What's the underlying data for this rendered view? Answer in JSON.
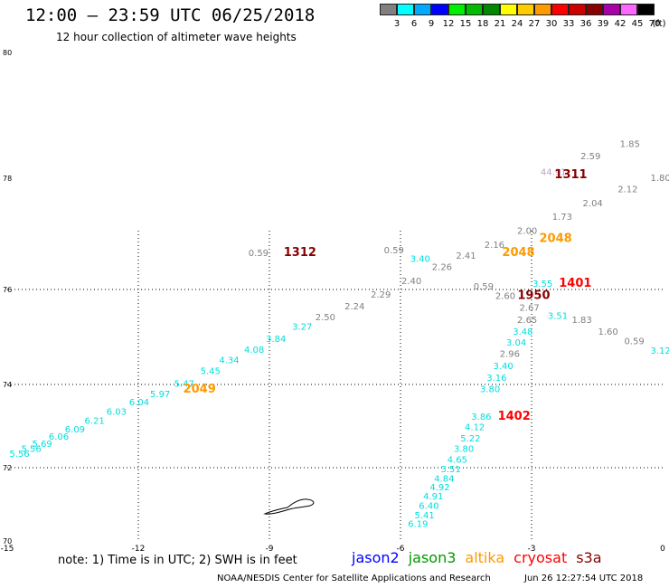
{
  "header": {
    "title": "12:00 – 23:59 UTC 06/25/2018",
    "subtitle": "12 hour collection of altimeter wave heights"
  },
  "colorbar": {
    "unit": "(ft)",
    "bins": [
      {
        "label": "3",
        "color": "#808080"
      },
      {
        "label": "6",
        "color": "#00ffff"
      },
      {
        "label": "9",
        "color": "#00aaff"
      },
      {
        "label": "12",
        "color": "#0000ff"
      },
      {
        "label": "15",
        "color": "#00ee00"
      },
      {
        "label": "18",
        "color": "#00bb00"
      },
      {
        "label": "21",
        "color": "#008800"
      },
      {
        "label": "24",
        "color": "#ffff00"
      },
      {
        "label": "27",
        "color": "#ffcc00"
      },
      {
        "label": "30",
        "color": "#ff9900"
      },
      {
        "label": "33",
        "color": "#ff0000"
      },
      {
        "label": "36",
        "color": "#cc0000"
      },
      {
        "label": "39",
        "color": "#880000"
      },
      {
        "label": "42",
        "color": "#aa00aa"
      },
      {
        "label": "45",
        "color": "#ff66ff"
      },
      {
        "label": "70",
        "color": "#000000"
      }
    ]
  },
  "axes": {
    "lat_labels": [
      {
        "lat": 80,
        "label": "80"
      },
      {
        "lat": 78,
        "label": "78"
      },
      {
        "lat": 76,
        "label": "76"
      },
      {
        "lat": 74,
        "label": "74"
      },
      {
        "lat": 72,
        "label": "72"
      },
      {
        "lat": 70,
        "label": "70"
      }
    ],
    "lon_labels": [
      {
        "lon": -15,
        "label": "-15"
      },
      {
        "lon": -12,
        "label": "-12"
      },
      {
        "lon": -9,
        "label": "-9"
      },
      {
        "lon": -6,
        "label": "-6"
      },
      {
        "lon": -3,
        "label": "-3"
      },
      {
        "lon": 0,
        "label": "0"
      }
    ],
    "lon_range": [
      -15,
      0
    ],
    "lat_range": [
      70,
      80
    ]
  },
  "colors": {
    "jason2": "#0000ff",
    "jason3": "#009900",
    "altika": "#ff9900",
    "cryosat": "#ff0000",
    "s3a": "#880000",
    "low_gray": "#808080",
    "cyan": "#00dddd"
  },
  "wave_labels": [
    {
      "text": "5.56",
      "lon": -14.72,
      "lat": 72.26,
      "c": "cyan"
    },
    {
      "text": "5.56",
      "lon": -14.45,
      "lat": 72.38,
      "c": "cyan"
    },
    {
      "text": "5.69",
      "lon": -14.2,
      "lat": 72.5,
      "c": "cyan"
    },
    {
      "text": "6.06",
      "lon": -13.82,
      "lat": 72.67,
      "c": "cyan"
    },
    {
      "text": "6.09",
      "lon": -13.45,
      "lat": 72.85,
      "c": "cyan"
    },
    {
      "text": "6.21",
      "lon": -13.0,
      "lat": 73.05,
      "c": "cyan"
    },
    {
      "text": "6.03",
      "lon": -12.5,
      "lat": 73.27,
      "c": "cyan"
    },
    {
      "text": "6.04",
      "lon": -11.98,
      "lat": 73.5,
      "c": "cyan"
    },
    {
      "text": "5.97",
      "lon": -11.5,
      "lat": 73.7,
      "c": "cyan"
    },
    {
      "text": "5.47",
      "lon": -10.95,
      "lat": 73.95,
      "c": "cyan"
    },
    {
      "text": "5.45",
      "lon": -10.35,
      "lat": 74.22,
      "c": "cyan"
    },
    {
      "text": "4.34",
      "lon": -9.92,
      "lat": 74.45,
      "c": "cyan"
    },
    {
      "text": "4.08",
      "lon": -9.35,
      "lat": 74.67,
      "c": "cyan"
    },
    {
      "text": "3.84",
      "lon": -8.85,
      "lat": 74.9,
      "c": "cyan"
    },
    {
      "text": "3.27",
      "lon": -8.25,
      "lat": 75.15,
      "c": "cyan"
    },
    {
      "text": "2.50",
      "lon": -7.72,
      "lat": 75.35,
      "c": "low_gray"
    },
    {
      "text": "2.24",
      "lon": -7.05,
      "lat": 75.58,
      "c": "low_gray"
    },
    {
      "text": "2.29",
      "lon": -6.45,
      "lat": 75.83,
      "c": "low_gray"
    },
    {
      "text": "2.40",
      "lon": -5.75,
      "lat": 76.1,
      "c": "low_gray"
    },
    {
      "text": "2.26",
      "lon": -5.05,
      "lat": 76.35,
      "c": "low_gray"
    },
    {
      "text": "2.41",
      "lon": -4.5,
      "lat": 76.55,
      "c": "low_gray"
    },
    {
      "text": "2.16",
      "lon": -3.85,
      "lat": 76.75,
      "c": "low_gray"
    },
    {
      "text": "2.00",
      "lon": -3.1,
      "lat": 77.0,
      "c": "low_gray"
    },
    {
      "text": "1.73",
      "lon": -2.3,
      "lat": 77.25,
      "c": "low_gray"
    },
    {
      "text": "2.04",
      "lon": -1.6,
      "lat": 77.5,
      "c": "low_gray"
    },
    {
      "text": "2.12",
      "lon": -0.8,
      "lat": 77.75,
      "c": "low_gray"
    },
    {
      "text": "1.80",
      "lon": -0.05,
      "lat": 77.95,
      "c": "low_gray"
    },
    {
      "text": "1.85",
      "lon": -0.75,
      "lat": 78.5,
      "c": "low_gray"
    },
    {
      "text": "2.59",
      "lon": -1.65,
      "lat": 78.3,
      "c": "low_gray"
    },
    {
      "text": "44.91",
      "lon": -2.5,
      "lat": 78.05,
      "c": "#b8a3cc"
    },
    {
      "text": "0.59",
      "lon": -9.25,
      "lat": 76.6,
      "c": "low_gray"
    },
    {
      "text": "0.59",
      "lon": -6.15,
      "lat": 76.65,
      "c": "low_gray"
    },
    {
      "text": "3.40",
      "lon": -5.55,
      "lat": 76.5,
      "c": "cyan"
    },
    {
      "text": "0.59",
      "lon": -4.1,
      "lat": 76.0,
      "c": "low_gray"
    },
    {
      "text": "2.60",
      "lon": -3.6,
      "lat": 75.8,
      "c": "low_gray"
    },
    {
      "text": "3.55",
      "lon": -2.75,
      "lat": 76.05,
      "c": "cyan"
    },
    {
      "text": "2.67",
      "lon": -3.05,
      "lat": 75.55,
      "c": "low_gray"
    },
    {
      "text": "2.65",
      "lon": -3.1,
      "lat": 75.3,
      "c": "low_gray"
    },
    {
      "text": "3.51",
      "lon": -2.4,
      "lat": 75.38,
      "c": "cyan"
    },
    {
      "text": "3.48",
      "lon": -3.2,
      "lat": 75.05,
      "c": "cyan"
    },
    {
      "text": "3.04",
      "lon": -3.35,
      "lat": 74.82,
      "c": "cyan"
    },
    {
      "text": "2.96",
      "lon": -3.5,
      "lat": 74.58,
      "c": "low_gray"
    },
    {
      "text": "3.40",
      "lon": -3.65,
      "lat": 74.32,
      "c": "cyan"
    },
    {
      "text": "3.16",
      "lon": -3.8,
      "lat": 74.08,
      "c": "cyan"
    },
    {
      "text": "3.80",
      "lon": -3.95,
      "lat": 73.82,
      "c": "cyan"
    },
    {
      "text": "1.83",
      "lon": -1.85,
      "lat": 75.3,
      "c": "low_gray"
    },
    {
      "text": "1.60",
      "lon": -1.25,
      "lat": 75.05,
      "c": "low_gray"
    },
    {
      "text": "0.59",
      "lon": -0.65,
      "lat": 74.85,
      "c": "low_gray"
    },
    {
      "text": "3.12",
      "lon": -0.05,
      "lat": 74.65,
      "c": "cyan"
    },
    {
      "text": "3.86",
      "lon": -4.15,
      "lat": 73.15,
      "c": "cyan"
    },
    {
      "text": "4.12",
      "lon": -4.3,
      "lat": 72.9,
      "c": "cyan"
    },
    {
      "text": "5.22",
      "lon": -4.4,
      "lat": 72.63,
      "c": "cyan"
    },
    {
      "text": "3.80",
      "lon": -4.55,
      "lat": 72.38,
      "c": "cyan"
    },
    {
      "text": "4.65",
      "lon": -4.7,
      "lat": 72.12,
      "c": "cyan"
    },
    {
      "text": "3.51",
      "lon": -4.85,
      "lat": 71.88,
      "c": "cyan"
    },
    {
      "text": "4.84",
      "lon": -5.0,
      "lat": 71.62,
      "c": "cyan"
    },
    {
      "text": "4.92",
      "lon": -5.1,
      "lat": 71.38,
      "c": "cyan"
    },
    {
      "text": "4.91",
      "lon": -5.25,
      "lat": 71.13,
      "c": "cyan"
    },
    {
      "text": "6.40",
      "lon": -5.35,
      "lat": 70.88,
      "c": "cyan"
    },
    {
      "text": "5.41",
      "lon": -5.45,
      "lat": 70.62,
      "c": "cyan"
    },
    {
      "text": "6.19",
      "lon": -5.6,
      "lat": 70.38,
      "c": "cyan"
    }
  ],
  "pass_labels": [
    {
      "text": "1312",
      "lon": -8.3,
      "lat": 76.6,
      "c": "s3a"
    },
    {
      "text": "1311",
      "lon": -2.1,
      "lat": 78.0,
      "c": "s3a"
    },
    {
      "text": "2048",
      "lon": -2.45,
      "lat": 76.85,
      "c": "altika"
    },
    {
      "text": "2048",
      "lon": -3.3,
      "lat": 76.6,
      "c": "altika"
    },
    {
      "text": "1401",
      "lon": -2.0,
      "lat": 76.05,
      "c": "cryosat"
    },
    {
      "text": "1950",
      "lon": -2.95,
      "lat": 75.8,
      "c": "s3a"
    },
    {
      "text": "2049",
      "lon": -10.6,
      "lat": 73.8,
      "c": "altika"
    },
    {
      "text": "1402",
      "lon": -3.4,
      "lat": 73.15,
      "c": "cryosat"
    }
  ],
  "footer": {
    "note": "note: 1) Time is in UTC; 2) SWH is in feet",
    "legend": [
      {
        "label": "jason2",
        "color": "#0000ff"
      },
      {
        "label": "jason3",
        "color": "#009900"
      },
      {
        "label": "altika",
        "color": "#ff9900"
      },
      {
        "label": "cryosat",
        "color": "#ff0000"
      },
      {
        "label": "s3a",
        "color": "#880000"
      }
    ],
    "credit": "NOAA/NESDIS Center for Satellite Applications and Research",
    "timestamp": "Jun 26 12:27:54 UTC 2018"
  }
}
